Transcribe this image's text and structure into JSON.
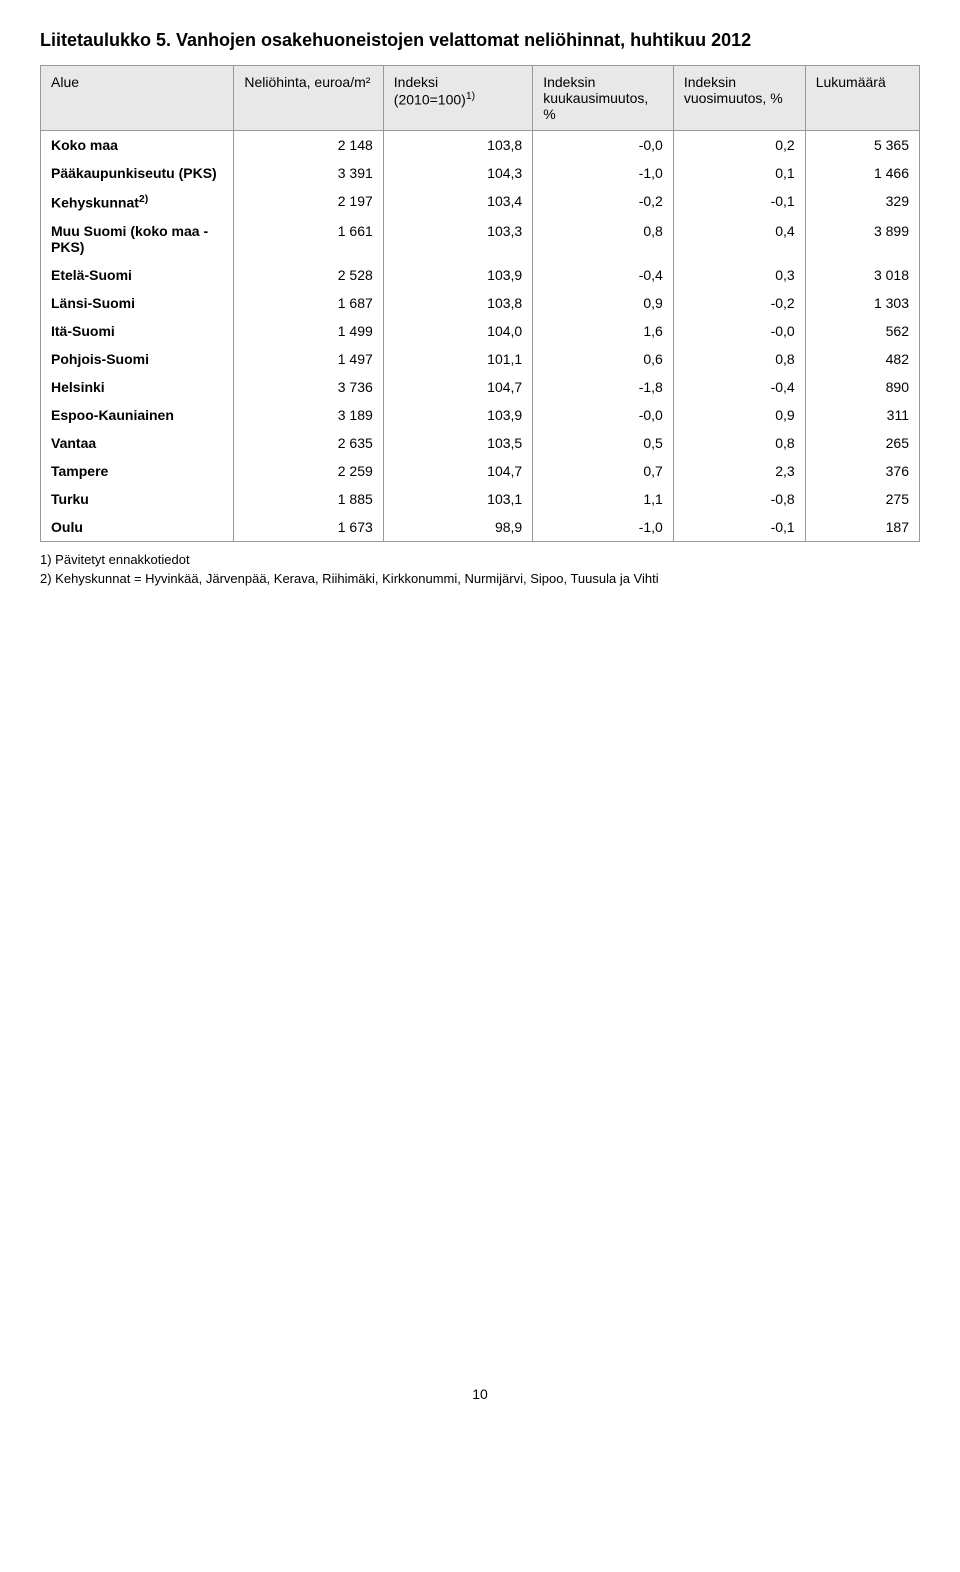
{
  "title": "Liitetaulukko 5. Vanhojen osakehuoneistojen velattomat neliöhinnat, huhtikuu 2012",
  "columns": {
    "alue": "Alue",
    "neliohinta": "Neliöhinta, euroa/m²",
    "indeksi_pre": "Indeksi (2010=100)",
    "indeksi_sup": "1)",
    "kuuk": "Indeksin kuukausimuutos, %",
    "vuosi": "Indeksin vuosimuutos, %",
    "luku": "Lukumäärä"
  },
  "rows": [
    {
      "label": "Koko maa",
      "sup": "",
      "c1": "2 148",
      "c2": "103,8",
      "c3": "-0,0",
      "c4": "0,2",
      "c5": "5 365"
    },
    {
      "label": "Pääkaupunkiseutu (PKS)",
      "sup": "",
      "c1": "3 391",
      "c2": "104,3",
      "c3": "-1,0",
      "c4": "0,1",
      "c5": "1 466"
    },
    {
      "label": "Kehyskunnat",
      "sup": "2)",
      "c1": "2 197",
      "c2": "103,4",
      "c3": "-0,2",
      "c4": "-0,1",
      "c5": "329"
    },
    {
      "label": "Muu Suomi (koko maa - PKS)",
      "sup": "",
      "c1": "1 661",
      "c2": "103,3",
      "c3": "0,8",
      "c4": "0,4",
      "c5": "3 899"
    },
    {
      "label": "Etelä-Suomi",
      "sup": "",
      "c1": "2 528",
      "c2": "103,9",
      "c3": "-0,4",
      "c4": "0,3",
      "c5": "3 018"
    },
    {
      "label": "Länsi-Suomi",
      "sup": "",
      "c1": "1 687",
      "c2": "103,8",
      "c3": "0,9",
      "c4": "-0,2",
      "c5": "1 303"
    },
    {
      "label": "Itä-Suomi",
      "sup": "",
      "c1": "1 499",
      "c2": "104,0",
      "c3": "1,6",
      "c4": "-0,0",
      "c5": "562"
    },
    {
      "label": "Pohjois-Suomi",
      "sup": "",
      "c1": "1 497",
      "c2": "101,1",
      "c3": "0,6",
      "c4": "0,8",
      "c5": "482"
    },
    {
      "label": "Helsinki",
      "sup": "",
      "c1": "3 736",
      "c2": "104,7",
      "c3": "-1,8",
      "c4": "-0,4",
      "c5": "890"
    },
    {
      "label": "Espoo-Kauniainen",
      "sup": "",
      "c1": "3 189",
      "c2": "103,9",
      "c3": "-0,0",
      "c4": "0,9",
      "c5": "311"
    },
    {
      "label": "Vantaa",
      "sup": "",
      "c1": "2 635",
      "c2": "103,5",
      "c3": "0,5",
      "c4": "0,8",
      "c5": "265"
    },
    {
      "label": "Tampere",
      "sup": "",
      "c1": "2 259",
      "c2": "104,7",
      "c3": "0,7",
      "c4": "2,3",
      "c5": "376"
    },
    {
      "label": "Turku",
      "sup": "",
      "c1": "1 885",
      "c2": "103,1",
      "c3": "1,1",
      "c4": "-0,8",
      "c5": "275"
    },
    {
      "label": "Oulu",
      "sup": "",
      "c1": "1 673",
      "c2": "98,9",
      "c3": "-1,0",
      "c4": "-0,1",
      "c5": "187"
    }
  ],
  "footnotes": {
    "f1": "1) Pävitetyt ennakkotiedot",
    "f2": "2) Kehyskunnat = Hyvinkää, Järvenpää, Kerava, Riihimäki, Kirkkonummi, Nurmijärvi, Sipoo, Tuusula ja Vihti"
  },
  "page_number": "10"
}
